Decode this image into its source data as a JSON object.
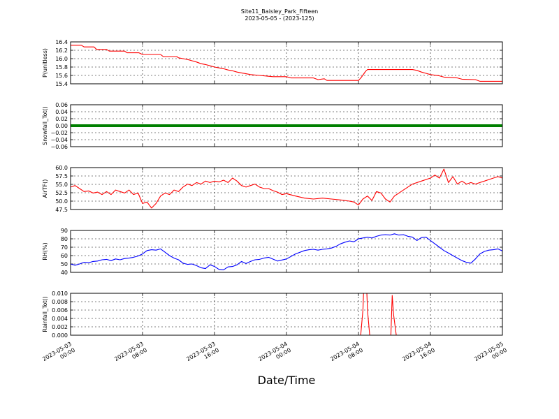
{
  "figure": {
    "title_line1": "Site11_Baisley_Park_Fifteen",
    "title_line2": "2023-05-05 - (2023-125)",
    "xlabel": "Date/Time"
  },
  "chart_data": {
    "type": "line",
    "grid": true,
    "x_range": [
      "2023-05-03 00:00",
      "2023-05-05 00:00"
    ],
    "x_ticks": [
      {
        "d": "2023-05-03",
        "t": "00:00"
      },
      {
        "d": "2023-05-03",
        "t": "08:00"
      },
      {
        "d": "2023-05-03",
        "t": "16:00"
      },
      {
        "d": "2023-05-04",
        "t": "00:00"
      },
      {
        "d": "2023-05-04",
        "t": "08:00"
      },
      {
        "d": "2023-05-04",
        "t": "16:00"
      },
      {
        "d": "2023-05-05",
        "t": "00:00"
      }
    ],
    "panels": [
      {
        "ylabel": "P(unitless)",
        "color": "#ff0000",
        "ylim": [
          15.4,
          16.4
        ],
        "yticks": [
          "16.4",
          "16.2",
          "16.0",
          "15.8",
          "15.6",
          "15.4"
        ],
        "hours": [
          0,
          1.2,
          1.5,
          2.6,
          2.9,
          4,
          4.3,
          6,
          6.3,
          7.6,
          8,
          10,
          10.3,
          11.8,
          12,
          12.5,
          13,
          13.5,
          14,
          14.5,
          15,
          15.5,
          16,
          16.5,
          17,
          17.5,
          18,
          18.5,
          19,
          19.5,
          20,
          20.5,
          21,
          21.5,
          22,
          22.5,
          24,
          24.5,
          27,
          27.5,
          28.2,
          28.5,
          32,
          32.3,
          32.8,
          33,
          38,
          38.5,
          39,
          39.5,
          40,
          41,
          41.5,
          43,
          43.5,
          45,
          45.5,
          48
        ],
        "values": [
          16.32,
          16.32,
          16.28,
          16.28,
          16.22,
          16.22,
          16.18,
          16.18,
          16.14,
          16.14,
          16.1,
          16.1,
          16.05,
          16.05,
          16.02,
          16.0,
          15.98,
          15.95,
          15.92,
          15.88,
          15.86,
          15.83,
          15.8,
          15.78,
          15.76,
          15.73,
          15.71,
          15.68,
          15.66,
          15.64,
          15.62,
          15.61,
          15.6,
          15.59,
          15.58,
          15.57,
          15.57,
          15.54,
          15.54,
          15.5,
          15.52,
          15.48,
          15.48,
          15.55,
          15.7,
          15.74,
          15.74,
          15.72,
          15.68,
          15.65,
          15.62,
          15.59,
          15.56,
          15.54,
          15.51,
          15.5,
          15.46,
          15.46
        ]
      },
      {
        "ylabel": "Snowfall_Tot()",
        "color": "#008000",
        "ylim": [
          -0.06,
          0.06
        ],
        "yticks": [
          "0.06",
          "0.04",
          "0.02",
          "0.00",
          "−0.02",
          "−0.04",
          "−0.06"
        ],
        "hours": [
          0,
          48
        ],
        "values": [
          0,
          0
        ]
      },
      {
        "ylabel": "AirTF()",
        "color": "#ff0000",
        "ylim": [
          46.0,
          60.0
        ],
        "yticks": [
          "60.0",
          "57.5",
          "55.0",
          "52.5",
          "50.0",
          "47.5"
        ],
        "hours": [
          0,
          0.5,
          1,
          1.5,
          2,
          2.5,
          3,
          3.5,
          4,
          4.5,
          5,
          5.5,
          6,
          6.5,
          7,
          7.5,
          8,
          8.5,
          9,
          9.5,
          10,
          10.5,
          11,
          11.5,
          12,
          12.5,
          13,
          13.5,
          14,
          14.5,
          15,
          15.5,
          16,
          16.5,
          17,
          17.5,
          18,
          18.5,
          19,
          19.5,
          20,
          20.5,
          21,
          21.5,
          22,
          22.5,
          23,
          23.5,
          24,
          25,
          26,
          27,
          28,
          29,
          30,
          31,
          31.5,
          32,
          32.5,
          33,
          33.5,
          34,
          34.5,
          35,
          35.5,
          36,
          36.5,
          37,
          38,
          39,
          40,
          40.5,
          41,
          41.5,
          42,
          42.5,
          43,
          43.5,
          44,
          44.5,
          45,
          45.5,
          46,
          46.5,
          47,
          47.5,
          48
        ],
        "values": [
          53.5,
          54,
          53,
          52,
          52.2,
          51.5,
          51.8,
          51,
          52,
          51,
          52.5,
          52,
          51.5,
          52.5,
          51,
          51.5,
          48,
          48.5,
          46.5,
          48,
          50.5,
          51.5,
          51,
          52.5,
          52,
          53.5,
          54.5,
          54,
          55,
          54.5,
          55.5,
          55,
          55.5,
          55.2,
          55.8,
          55,
          56.5,
          55.5,
          54,
          53.5,
          54,
          54.5,
          53.5,
          53,
          53,
          52.3,
          51.8,
          51,
          51.3,
          50.5,
          49.8,
          49.5,
          49.8,
          49.5,
          49.2,
          48.8,
          48.5,
          47.5,
          49.5,
          50.5,
          49,
          52,
          51.5,
          49.5,
          48.5,
          50.5,
          51.5,
          52.5,
          54.5,
          55.5,
          56.5,
          57.5,
          56.5,
          59.5,
          55,
          57,
          54.5,
          55.5,
          54.5,
          55,
          54.5,
          55,
          55.5,
          56,
          56.5,
          57,
          56.5
        ]
      },
      {
        "ylabel": "RH(%)",
        "color": "#0000ff",
        "ylim": [
          40,
          90
        ],
        "yticks": [
          "90",
          "80",
          "70",
          "60",
          "50",
          "40"
        ],
        "hours": [
          0,
          0.5,
          1,
          1.5,
          2,
          2.5,
          3,
          3.5,
          4,
          4.5,
          5,
          5.5,
          6,
          6.5,
          7,
          7.5,
          8,
          8.5,
          9,
          9.5,
          10,
          10.5,
          11,
          11.5,
          12,
          12.5,
          13,
          13.5,
          14,
          14.5,
          15,
          15.5,
          16,
          16.5,
          17,
          17.5,
          18,
          18.5,
          19,
          19.5,
          20,
          20.5,
          21,
          21.5,
          22,
          23,
          24,
          25,
          26,
          26.5,
          27,
          27.5,
          28,
          28.5,
          29,
          29.5,
          30,
          30.5,
          31,
          31.5,
          32,
          32.5,
          33,
          33.5,
          34,
          34.5,
          35,
          35.5,
          36,
          36.5,
          37,
          37.5,
          38,
          38.5,
          39,
          39.5,
          40,
          40.5,
          41,
          41.5,
          42,
          42.5,
          43,
          43.5,
          44,
          44.5,
          45,
          45.5,
          46,
          46.5,
          47,
          47.5,
          48
        ],
        "values": [
          50,
          48.5,
          50,
          52,
          51.5,
          53,
          53.5,
          55,
          55.5,
          54,
          56,
          55,
          56.5,
          57,
          58,
          59.5,
          62,
          66,
          67,
          66.5,
          68,
          64,
          60,
          57,
          55,
          51,
          49.5,
          50,
          48,
          45.5,
          44.5,
          49,
          47,
          43.5,
          43,
          46.5,
          47,
          49,
          53,
          50.5,
          53,
          55,
          55.5,
          57,
          58,
          53.5,
          56,
          62,
          66,
          67,
          67.5,
          66.5,
          67.5,
          68,
          69,
          71,
          74,
          76,
          77.5,
          76.5,
          80,
          81,
          82,
          81,
          83,
          84.5,
          85,
          84.5,
          86,
          84.5,
          85,
          83,
          82,
          78,
          81.5,
          82,
          78,
          74,
          70,
          66,
          63,
          60,
          57,
          54,
          52,
          51,
          56,
          62,
          65,
          66.5,
          67,
          68,
          65.5
        ]
      },
      {
        "ylabel": "Rainfall_Tot()",
        "color": "#ff0000",
        "ylim": [
          0,
          0.01
        ],
        "yticks": [
          "0.010",
          "0.008",
          "0.006",
          "0.004",
          "0.002",
          "0.000"
        ],
        "hours": [
          0,
          32.25,
          32.5,
          32.6,
          32.9,
          33,
          33.25,
          35.6,
          35.75,
          35.9,
          36.2,
          48
        ],
        "values": [
          0,
          0,
          0.006,
          0.012,
          0.012,
          0.006,
          0,
          0,
          0.0095,
          0.005,
          0,
          0
        ]
      }
    ]
  }
}
